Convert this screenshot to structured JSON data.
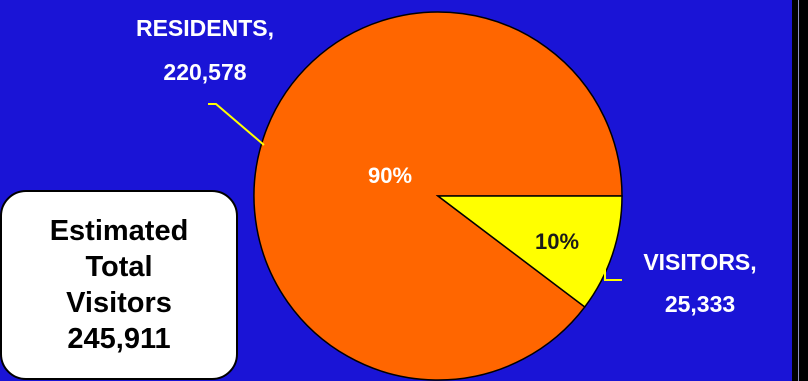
{
  "colors": {
    "background": "#1a14d6",
    "residents": "#ff6600",
    "visitors": "#ffff00",
    "label_text": "#ffffff",
    "callout_bg": "#ffffff",
    "leader_line": "#ffff00"
  },
  "chart_data": {
    "type": "pie",
    "title": "",
    "slices": [
      {
        "category": "RESIDENTS",
        "value": 220578,
        "value_label": "220,578",
        "percent_label": "90%",
        "color": "#ff6600"
      },
      {
        "category": "VISITORS",
        "value": 25333,
        "value_label": "25,333",
        "percent_label": "10%",
        "color": "#ffff00"
      }
    ],
    "data_label_format": "CATEGORY, VALUE"
  },
  "labels": {
    "residents_name": "RESIDENTS,",
    "residents_value": "220,578",
    "visitors_name": "VISITORS,",
    "visitors_value": "25,333",
    "residents_pct": "90%",
    "visitors_pct": "10%"
  },
  "callout": {
    "line1": "Estimated",
    "line2": "Total",
    "line3": "Visitors",
    "line4": "245,911"
  }
}
